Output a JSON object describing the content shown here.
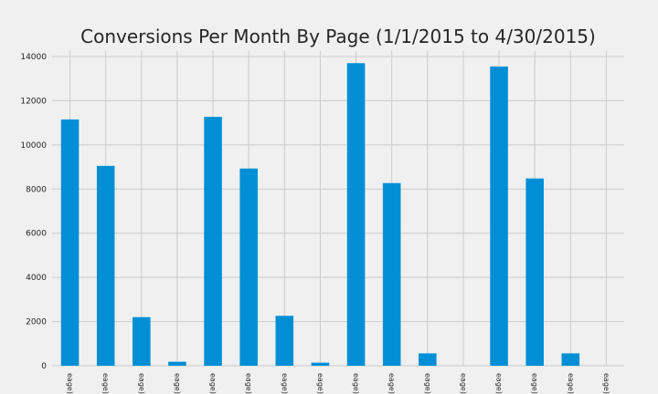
{
  "chart_data": {
    "type": "bar",
    "title": "Conversions Per Month By Page (1/1/2015 to 4/30/2015)",
    "xlabel": "",
    "ylabel": "",
    "ylim": [
      0,
      14000
    ],
    "yticks": [
      0,
      2000,
      4000,
      6000,
      8000,
      10000,
      12000,
      14000
    ],
    "grid": true,
    "categories": [
      "eage)",
      "eage)",
      "eage)",
      "eage)",
      "eage)",
      "eage)",
      "eage)",
      "eage)",
      "eage)",
      "eage)",
      "eage)",
      "eage)",
      "eage)",
      "eage)",
      "eage)",
      "eage)"
    ],
    "values": [
      11150,
      9050,
      2200,
      180,
      11270,
      8930,
      2260,
      140,
      13700,
      8270,
      560,
      0,
      13550,
      8480,
      560,
      0
    ],
    "colors": {
      "bar": "#008fd5",
      "background": "#f0f0f0",
      "grid": "#cbcbcb",
      "text": "#262626"
    }
  }
}
